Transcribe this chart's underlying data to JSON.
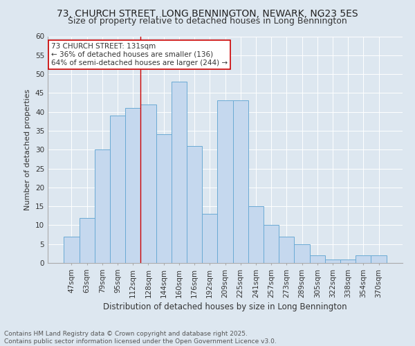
{
  "title1": "73, CHURCH STREET, LONG BENNINGTON, NEWARK, NG23 5ES",
  "title2": "Size of property relative to detached houses in Long Bennington",
  "xlabel": "Distribution of detached houses by size in Long Bennington",
  "ylabel": "Number of detached properties",
  "categories": [
    "47sqm",
    "63sqm",
    "79sqm",
    "95sqm",
    "112sqm",
    "128sqm",
    "144sqm",
    "160sqm",
    "176sqm",
    "192sqm",
    "209sqm",
    "225sqm",
    "241sqm",
    "257sqm",
    "273sqm",
    "289sqm",
    "305sqm",
    "322sqm",
    "338sqm",
    "354sqm",
    "370sqm"
  ],
  "values": [
    7,
    12,
    30,
    39,
    41,
    42,
    34,
    48,
    31,
    13,
    43,
    43,
    15,
    10,
    7,
    5,
    2,
    1,
    1,
    2,
    2
  ],
  "bar_color": "#c5d8ee",
  "bar_edge_color": "#6aaad4",
  "background_color": "#dde7f0",
  "grid_color": "#ffffff",
  "vline_x": 4.5,
  "vline_color": "#cc0000",
  "annotation_text": "73 CHURCH STREET: 131sqm\n← 36% of detached houses are smaller (136)\n64% of semi-detached houses are larger (244) →",
  "annotation_box_color": "#ffffff",
  "annotation_box_edge": "#cc0000",
  "ylim": [
    0,
    60
  ],
  "yticks": [
    0,
    5,
    10,
    15,
    20,
    25,
    30,
    35,
    40,
    45,
    50,
    55,
    60
  ],
  "footer": "Contains HM Land Registry data © Crown copyright and database right 2025.\nContains public sector information licensed under the Open Government Licence v3.0.",
  "title1_fontsize": 10,
  "title2_fontsize": 9,
  "xlabel_fontsize": 8.5,
  "ylabel_fontsize": 8,
  "tick_fontsize": 7.5,
  "annotation_fontsize": 7.5,
  "footer_fontsize": 6.5
}
